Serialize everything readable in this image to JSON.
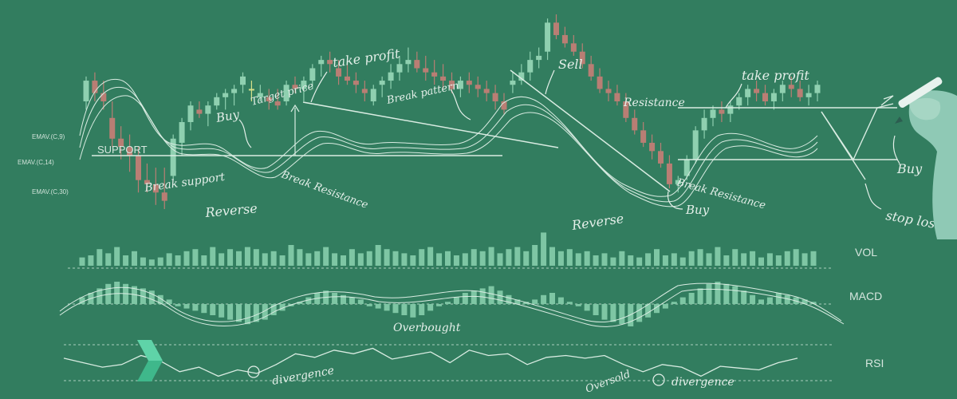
{
  "colors": {
    "background": "#327d5f",
    "candle_up": "#8fd0b0",
    "candle_down": "#b97e74",
    "candle_doji": "#d6e08a",
    "line": "#d9ece2",
    "volume_bar": "#7ec6a4",
    "ink": "#e4efe9"
  },
  "indicator_labels": {
    "ema9": "EMAV.(C,9)",
    "ema14": "EMAV.(C,14)",
    "ema30": "EMAV.(C,30)"
  },
  "annotations": {
    "support": "SUPPORT",
    "break_support": "Break support",
    "reverse_1": "Reverse",
    "buy_1": "Buy",
    "target_price": "Target price",
    "take_profit_1": "take profit",
    "break_resistance_1": "Break Resistance",
    "break_pattern": "Break pattern",
    "sell": "Sell",
    "reverse_2": "Reverse",
    "buy_2": "Buy",
    "take_profit_2": "take profit",
    "resistance": "Resistance",
    "break_resistance_2": "Break Resistance",
    "buy_3": "Buy",
    "stop_loss": "stop loss",
    "overbought": "Overbought",
    "divergence_1": "divergence",
    "oversold": "Oversold",
    "divergence_2": "divergence"
  },
  "panels": {
    "vol": "VOL",
    "macd": "MACD",
    "rsi": "RSI"
  },
  "chart_data": [
    {
      "type": "candlestick",
      "title": "",
      "series": [
        {
          "name": "price",
          "ohlc": [
            [
              150,
              180,
              140,
              175
            ],
            [
              175,
              185,
              150,
              160
            ],
            [
              160,
              175,
              140,
              150
            ],
            [
              130,
              150,
              95,
              105
            ],
            [
              105,
              120,
              80,
              95
            ],
            [
              95,
              110,
              65,
              85
            ],
            [
              85,
              95,
              40,
              55
            ],
            [
              55,
              75,
              40,
              50
            ],
            [
              50,
              70,
              25,
              40
            ],
            [
              40,
              70,
              20,
              30
            ],
            [
              60,
              110,
              55,
              105
            ],
            [
              100,
              130,
              85,
              125
            ],
            [
              125,
              150,
              115,
              145
            ],
            [
              140,
              150,
              130,
              135
            ],
            [
              135,
              150,
              120,
              145
            ],
            [
              145,
              160,
              140,
              155
            ],
            [
              155,
              165,
              140,
              160
            ],
            [
              160,
              170,
              145,
              165
            ],
            [
              170,
              185,
              160,
              180
            ],
            [
              165,
              175,
              150,
              165
            ],
            [
              155,
              170,
              150,
              160
            ],
            [
              155,
              165,
              140,
              150
            ],
            [
              150,
              165,
              140,
              145
            ],
            [
              150,
              175,
              145,
              170
            ],
            [
              170,
              180,
              160,
              165
            ],
            [
              165,
              180,
              150,
              175
            ],
            [
              175,
              195,
              165,
              190
            ],
            [
              195,
              205,
              180,
              200
            ],
            [
              200,
              210,
              185,
              195
            ],
            [
              190,
              200,
              170,
              180
            ],
            [
              180,
              195,
              170,
              175
            ],
            [
              175,
              185,
              160,
              170
            ],
            [
              165,
              175,
              150,
              160
            ],
            [
              150,
              170,
              145,
              165
            ],
            [
              170,
              180,
              155,
              175
            ],
            [
              175,
              195,
              165,
              185
            ],
            [
              185,
              205,
              175,
              195
            ],
            [
              195,
              215,
              185,
              200
            ],
            [
              200,
              210,
              185,
              190
            ],
            [
              190,
              205,
              175,
              185
            ],
            [
              185,
              200,
              170,
              180
            ],
            [
              180,
              195,
              165,
              175
            ],
            [
              175,
              185,
              160,
              165
            ],
            [
              165,
              180,
              155,
              175
            ],
            [
              175,
              185,
              160,
              170
            ],
            [
              170,
              180,
              155,
              165
            ],
            [
              165,
              175,
              150,
              160
            ],
            [
              160,
              170,
              140,
              150
            ],
            [
              150,
              160,
              135,
              140
            ],
            [
              170,
              185,
              160,
              175
            ],
            [
              175,
              195,
              170,
              185
            ],
            [
              185,
              210,
              175,
              200
            ],
            [
              200,
              215,
              190,
              205
            ],
            [
              210,
              250,
              200,
              245
            ],
            [
              245,
              255,
              225,
              230
            ],
            [
              230,
              240,
              215,
              220
            ],
            [
              220,
              230,
              205,
              210
            ],
            [
              210,
              220,
              190,
              195
            ],
            [
              195,
              205,
              175,
              180
            ],
            [
              180,
              190,
              160,
              165
            ],
            [
              165,
              175,
              150,
              160
            ],
            [
              160,
              170,
              145,
              150
            ],
            [
              150,
              160,
              125,
              130
            ],
            [
              130,
              140,
              110,
              115
            ],
            [
              115,
              125,
              95,
              100
            ],
            [
              100,
              110,
              80,
              90
            ],
            [
              90,
              100,
              70,
              75
            ],
            [
              75,
              85,
              45,
              50
            ],
            [
              50,
              60,
              40,
              55
            ],
            [
              60,
              85,
              55,
              80
            ],
            [
              80,
              120,
              75,
              115
            ],
            [
              115,
              140,
              105,
              130
            ],
            [
              130,
              145,
              120,
              140
            ],
            [
              140,
              150,
              125,
              135
            ],
            [
              135,
              150,
              125,
              145
            ],
            [
              145,
              160,
              140,
              155
            ],
            [
              155,
              170,
              145,
              165
            ],
            [
              165,
              175,
              150,
              160
            ],
            [
              160,
              170,
              145,
              150
            ],
            [
              150,
              165,
              140,
              160
            ],
            [
              160,
              175,
              150,
              170
            ],
            [
              170,
              180,
              155,
              165
            ],
            [
              165,
              175,
              150,
              155
            ],
            [
              155,
              170,
              145,
              160
            ],
            [
              160,
              175,
              150,
              170
            ]
          ]
        }
      ]
    },
    {
      "type": "bar",
      "title": "VOL",
      "values": [
        4,
        5,
        8,
        6,
        9,
        5,
        7,
        4,
        3,
        4,
        6,
        5,
        7,
        8,
        5,
        9,
        6,
        8,
        7,
        9,
        8,
        6,
        7,
        5,
        10,
        8,
        6,
        7,
        9,
        6,
        5,
        8,
        6,
        7,
        10,
        8,
        7,
        6,
        5,
        8,
        9,
        6,
        7,
        5,
        6,
        8,
        7,
        9,
        6,
        8,
        9,
        7,
        10,
        16,
        9,
        7,
        8,
        6,
        7,
        5,
        6,
        4,
        7,
        5,
        4,
        6,
        8,
        5,
        6,
        4,
        7,
        8,
        6,
        9,
        5,
        8,
        6,
        7,
        4,
        6,
        5,
        7,
        8,
        6,
        7
      ]
    },
    {
      "type": "bar",
      "title": "MACD",
      "values": [
        3,
        5,
        7,
        9,
        10,
        9,
        8,
        7,
        6,
        4,
        2,
        -1,
        -2,
        -3,
        -4,
        -5,
        -6,
        -7,
        -8,
        -9,
        -8,
        -7,
        -5,
        -3,
        -1,
        1,
        3,
        5,
        6,
        5,
        4,
        3,
        2,
        -1,
        -2,
        -3,
        -4,
        -5,
        -6,
        -5,
        -3,
        -1,
        1,
        3,
        5,
        6,
        7,
        8,
        6,
        4,
        2,
        1,
        2,
        4,
        5,
        3,
        1,
        -1,
        -3,
        -5,
        -7,
        -8,
        -9,
        -10,
        -8,
        -6,
        -4,
        -2,
        1,
        3,
        5,
        7,
        9,
        10,
        9,
        8,
        6,
        4,
        2,
        3,
        5,
        4,
        3,
        2,
        1
      ]
    },
    {
      "type": "line",
      "title": "RSI",
      "values": [
        55,
        50,
        45,
        48,
        58,
        52,
        40,
        45,
        35,
        42,
        38,
        48,
        60,
        56,
        64,
        60,
        66,
        54,
        58,
        62,
        50,
        64,
        58,
        60,
        48,
        56,
        58,
        55,
        58,
        48,
        40,
        48,
        45,
        35,
        46,
        44,
        42,
        50,
        55
      ]
    }
  ]
}
